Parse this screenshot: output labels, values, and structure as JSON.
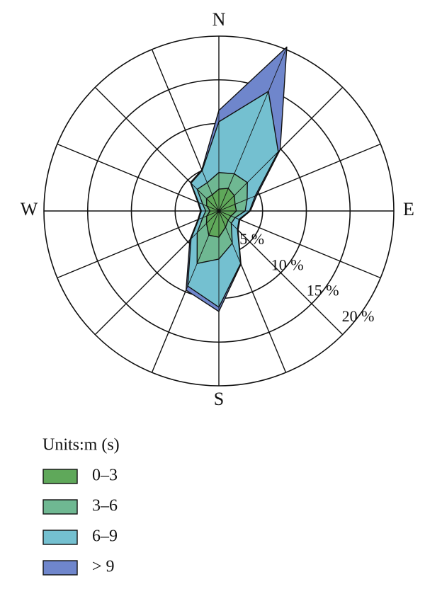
{
  "chart_data": {
    "type": "windrose",
    "categories": [
      "N",
      null,
      null,
      null,
      "E",
      null,
      null,
      null,
      "S",
      null,
      null,
      null,
      "W",
      null,
      null,
      null
    ],
    "series": [
      {
        "name": "0–3",
        "color": "#5fa85a",
        "values": [
          2.5,
          2.8,
          2.5,
          2,
          2,
          1.5,
          1.5,
          2,
          3,
          3,
          2,
          1.5,
          1,
          1.5,
          2,
          2
        ]
      },
      {
        "name": "3–6",
        "color": "#6fb892",
        "values": [
          1.9,
          1.8,
          2.1,
          1.5,
          1,
          0.5,
          0.5,
          2,
          2.5,
          3.5,
          1.5,
          0.5,
          0.5,
          0.5,
          1.5,
          1.5
        ]
      },
      {
        "name": "6–9",
        "color": "#74c0d0",
        "values": [
          5.8,
          10.2,
          5,
          1,
          0.5,
          0.5,
          1,
          2.5,
          5.5,
          2.8,
          1,
          0.5,
          0.5,
          0.5,
          1,
          1.5
        ]
      },
      {
        "name": "> 9",
        "color": "#6f86cc",
        "values": [
          1.3,
          5.5,
          0.3,
          0.2,
          0.1,
          0.1,
          0.1,
          0.1,
          0.5,
          0.5,
          0.2,
          0.1,
          0.1,
          0.1,
          0.1,
          0.1
        ]
      }
    ],
    "rlim": [
      0,
      20
    ],
    "rticks": [
      {
        "value": 5,
        "label": "5 %"
      },
      {
        "value": 10,
        "label": "10 %"
      },
      {
        "value": 15,
        "label": "15 %"
      },
      {
        "value": 20,
        "label": "20 %"
      }
    ],
    "legend_title": "Units:m (s)",
    "legend": "bottom-left"
  }
}
